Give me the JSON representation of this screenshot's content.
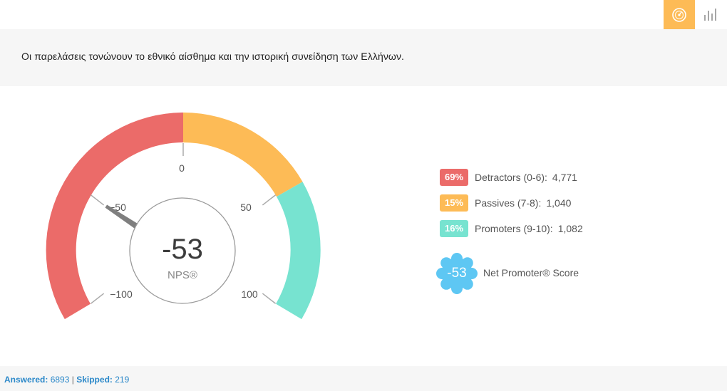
{
  "toolbar": {
    "gauge_icon": "gauge-icon",
    "bar_chart_icon": "bar-chart-icon"
  },
  "question": {
    "text": "Οι παρελάσεις τονώνουν το εθνικό αίσθημα και την ιστορική συνείδηση των Ελλήνων."
  },
  "gauge": {
    "value": "-53",
    "label": "NPS®",
    "ticks": [
      "0",
      "−50",
      "50",
      "−100",
      "100"
    ]
  },
  "legend": [
    {
      "percent": "69%",
      "label": "Detractors (0-6):",
      "count": "4,771",
      "color": "#eb6b69"
    },
    {
      "percent": "15%",
      "label": "Passives (7-8):",
      "count": "1,040",
      "color": "#fdbb56"
    },
    {
      "percent": "16%",
      "label": "Promoters (9-10):",
      "count": "1,082",
      "color": "#77e3d0"
    }
  ],
  "nps": {
    "score": "-53",
    "label": "Net Promoter® Score",
    "color": "#5ec7f3"
  },
  "footer": {
    "answered_label": "Answered:",
    "answered_value": "6893",
    "separator": "|",
    "skipped_label": "Skipped:",
    "skipped_value": "219"
  },
  "chart_data": {
    "type": "gauge",
    "min": -100,
    "max": 100,
    "value": -53,
    "tick_labels": [
      "−100",
      "−50",
      "0",
      "50",
      "100"
    ],
    "segments": [
      {
        "name": "Detractors",
        "percent": 69
      },
      {
        "name": "Passives",
        "percent": 15
      },
      {
        "name": "Promoters",
        "percent": 16
      }
    ]
  }
}
